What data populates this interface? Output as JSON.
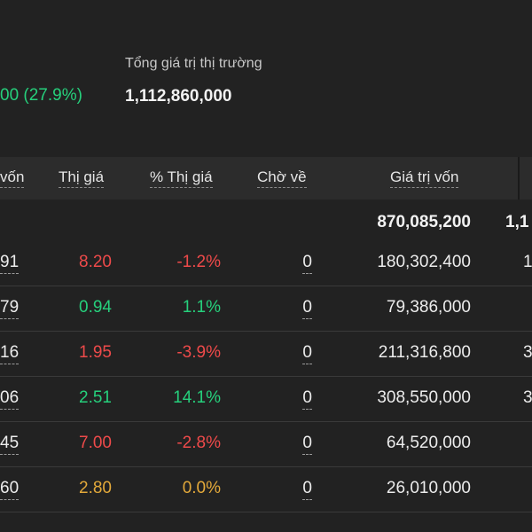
{
  "summary": {
    "left_value": "00 (27.9%)",
    "market_value_label": "Tổng giá trị thị trường",
    "market_value": "1,112,860,000"
  },
  "table": {
    "headers": {
      "von_partial": "vốn",
      "thi_gia": "Thị giá",
      "pct_thi_gia": "% Thị giá",
      "cho_ve": "Chờ về",
      "gia_tri_von": "Giá trị vốn"
    },
    "total": {
      "gia_tri_von": "870,085,200",
      "next_partial": "1,1"
    },
    "rows": [
      {
        "von": "91",
        "thi_gia": "8.20",
        "pct": "-1.2%",
        "cho_ve": "0",
        "gia_tri_von": "180,302,400",
        "next": "1",
        "status": "red"
      },
      {
        "von": "79",
        "thi_gia": "0.94",
        "pct": "1.1%",
        "cho_ve": "0",
        "gia_tri_von": "79,386,000",
        "next": "",
        "status": "green"
      },
      {
        "von": "16",
        "thi_gia": "1.95",
        "pct": "-3.9%",
        "cho_ve": "0",
        "gia_tri_von": "211,316,800",
        "next": "3",
        "status": "red"
      },
      {
        "von": "06",
        "thi_gia": "2.51",
        "pct": "14.1%",
        "cho_ve": "0",
        "gia_tri_von": "308,550,000",
        "next": "3",
        "status": "green"
      },
      {
        "von": "45",
        "thi_gia": "7.00",
        "pct": "-2.8%",
        "cho_ve": "0",
        "gia_tri_von": "64,520,000",
        "next": "",
        "status": "red"
      },
      {
        "von": "60",
        "thi_gia": "2.80",
        "pct": "0.0%",
        "cho_ve": "0",
        "gia_tri_von": "26,010,000",
        "next": "",
        "status": "yellow"
      }
    ]
  },
  "colors": {
    "background": "#222222",
    "header_bg": "#2c2c2c",
    "up": "#26d07c",
    "down": "#ee4a4a",
    "unchanged": "#e3a93a",
    "text": "#ececec"
  }
}
